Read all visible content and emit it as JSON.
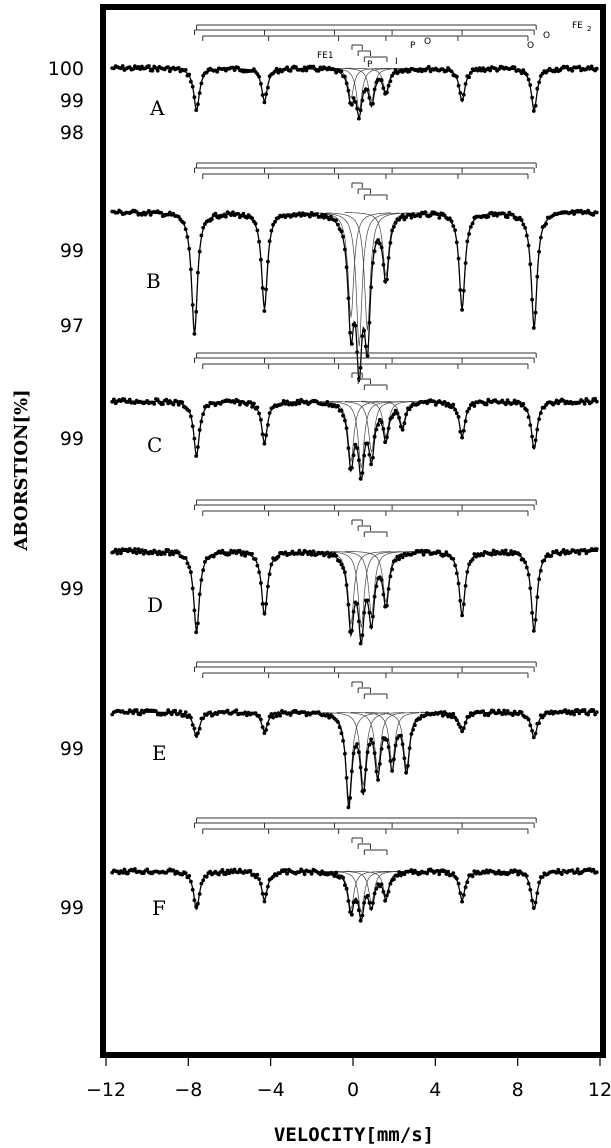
{
  "chart_data": {
    "type": "line",
    "title": "",
    "xlabel": "VELOCITY[mm/s]",
    "ylabel": "ABORSTION[%]",
    "x_ticks": [
      -12,
      -8,
      -4,
      0,
      4,
      8,
      12
    ],
    "xlim": [
      -12,
      12
    ],
    "grid": false,
    "legend": "none",
    "y_tick_labels": {
      "A": [
        "100",
        "99",
        "98"
      ],
      "B": [
        "99",
        "97"
      ],
      "C": [
        "99"
      ],
      "D": [
        "99"
      ],
      "E": [
        "99"
      ],
      "F": [
        "99"
      ]
    },
    "y_tick_values": {
      "A": [
        100,
        99,
        98
      ],
      "B": [
        99,
        97
      ],
      "C": [
        99
      ],
      "D": [
        99
      ],
      "E": [
        99
      ],
      "F": [
        99
      ]
    },
    "annotations": [
      "FE1",
      "P",
      "I",
      "P",
      "O",
      "O",
      "O",
      "FE",
      "2"
    ],
    "component_positions": {
      "sextet_outer": [
        -7.7,
        -4.3,
        -0.9,
        1.9,
        5.3,
        8.8
      ],
      "sextet_inner": [
        -7.3,
        -4.1,
        -0.7,
        1.6,
        5.1,
        8.5
      ],
      "doublets": [
        [
          -0.05,
          0.45
        ],
        [
          0.25,
          0.85
        ],
        [
          0.55,
          1.65
        ]
      ]
    },
    "series": [
      {
        "name": "A",
        "baseline": 100,
        "depth_scale": 1.0,
        "dips": [
          [
            -7.6,
            1.4
          ],
          [
            -4.3,
            1.1
          ],
          [
            -0.1,
            1.0
          ],
          [
            0.3,
            1.4
          ],
          [
            0.9,
            1.1
          ],
          [
            1.6,
            0.8
          ],
          [
            5.3,
            1.1
          ],
          [
            8.8,
            1.4
          ]
        ]
      },
      {
        "name": "B",
        "baseline": 100,
        "depth_scale": 1.0,
        "dips": [
          [
            -7.7,
            3.8
          ],
          [
            -4.3,
            3.0
          ],
          [
            -0.1,
            3.3
          ],
          [
            0.3,
            4.2
          ],
          [
            0.7,
            3.7
          ],
          [
            1.6,
            2.0
          ],
          [
            5.3,
            3.0
          ],
          [
            8.8,
            3.6
          ]
        ]
      },
      {
        "name": "C",
        "baseline": 100,
        "depth_scale": 1.0,
        "dips": [
          [
            -7.6,
            1.7
          ],
          [
            -4.3,
            1.3
          ],
          [
            -0.1,
            1.9
          ],
          [
            0.4,
            2.1
          ],
          [
            0.9,
            1.6
          ],
          [
            1.6,
            1.1
          ],
          [
            2.4,
            0.8
          ],
          [
            5.3,
            1.1
          ],
          [
            8.8,
            1.5
          ]
        ]
      },
      {
        "name": "D",
        "baseline": 100,
        "depth_scale": 1.0,
        "dips": [
          [
            -7.6,
            2.5
          ],
          [
            -4.3,
            2.0
          ],
          [
            -0.1,
            2.3
          ],
          [
            0.4,
            2.4
          ],
          [
            0.9,
            2.0
          ],
          [
            1.6,
            1.6
          ],
          [
            5.3,
            2.0
          ],
          [
            8.8,
            2.5
          ]
        ]
      },
      {
        "name": "E",
        "baseline": 100,
        "depth_scale": 1.0,
        "dips": [
          [
            -7.6,
            0.8
          ],
          [
            -4.3,
            0.6
          ],
          [
            -0.2,
            2.8
          ],
          [
            0.5,
            2.3
          ],
          [
            1.2,
            1.8
          ],
          [
            1.9,
            1.6
          ],
          [
            2.6,
            1.8
          ],
          [
            5.3,
            0.6
          ],
          [
            8.8,
            0.8
          ]
        ]
      },
      {
        "name": "F",
        "baseline": 100,
        "depth_scale": 1.0,
        "dips": [
          [
            -7.6,
            1.2
          ],
          [
            -4.3,
            0.9
          ],
          [
            -0.1,
            1.2
          ],
          [
            0.4,
            1.3
          ],
          [
            0.9,
            1.0
          ],
          [
            1.6,
            0.8
          ],
          [
            5.3,
            0.9
          ],
          [
            8.8,
            1.2
          ]
        ]
      }
    ]
  }
}
